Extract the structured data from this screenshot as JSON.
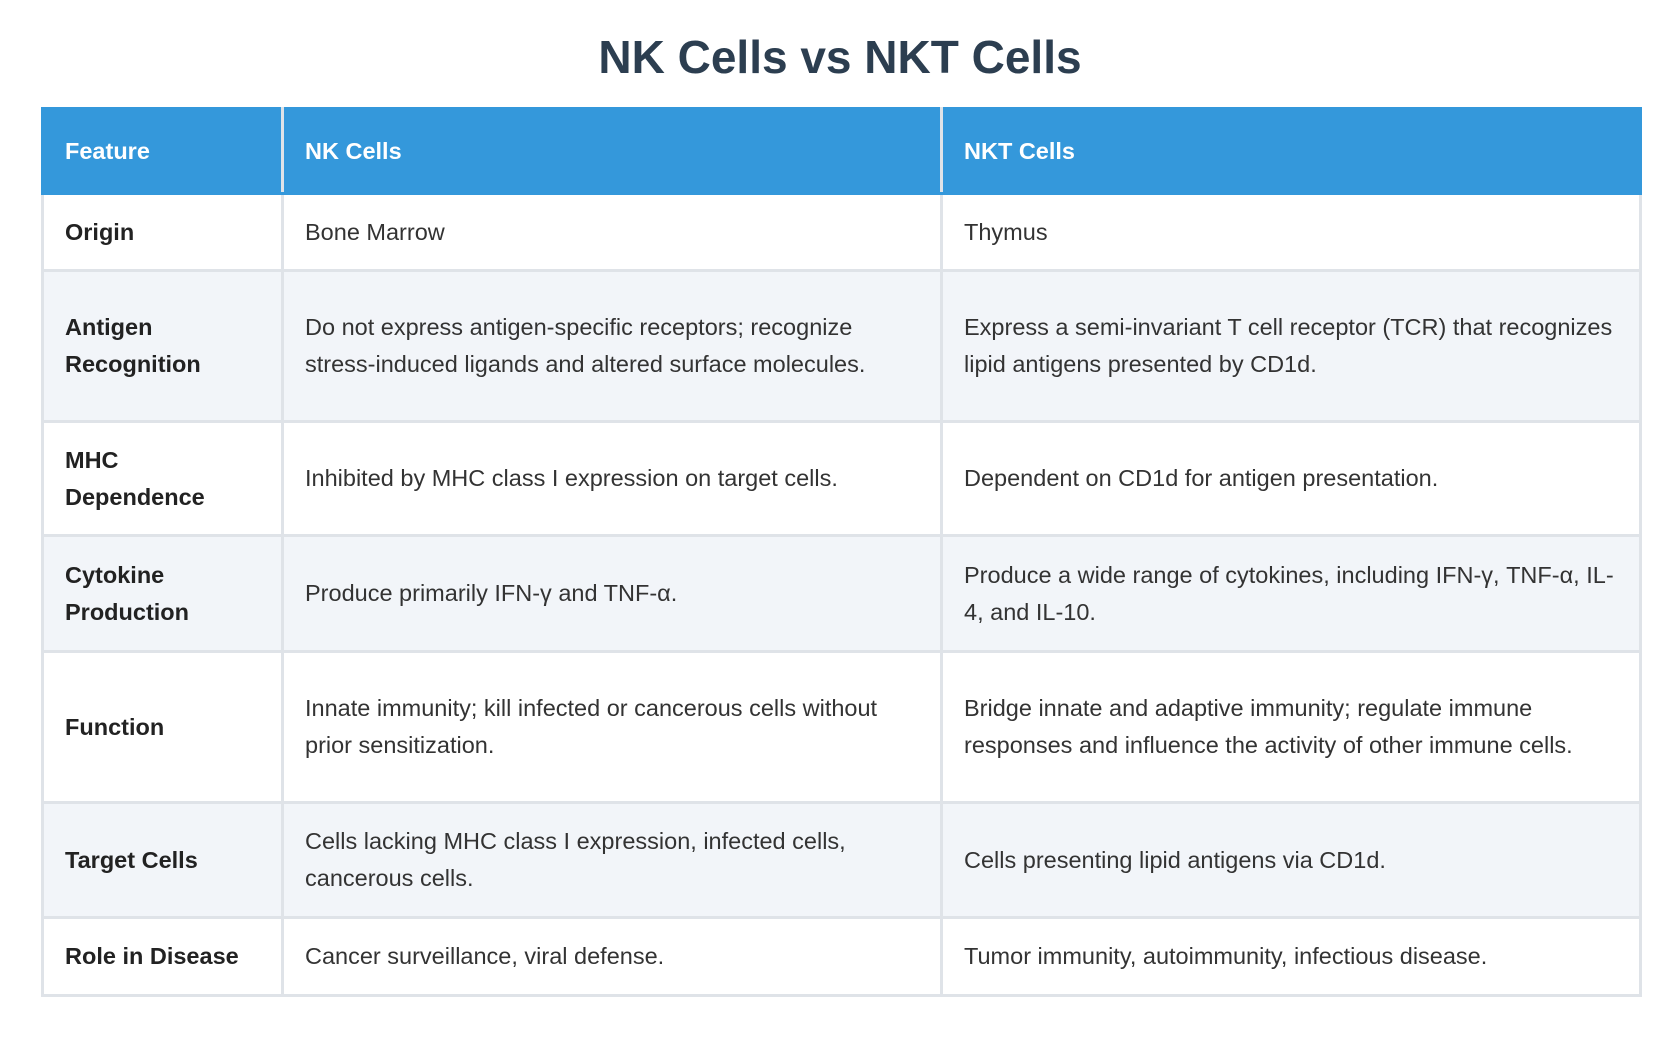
{
  "header": {
    "title": "NK Cells vs NKT Cells"
  },
  "table": {
    "columns": [
      "Feature",
      "NK Cells",
      "NKT Cells"
    ],
    "rows": [
      [
        "Origin",
        "Bone Marrow",
        "Thymus"
      ],
      [
        "Antigen Recognition",
        "Do not express antigen-specific receptors; recognize stress-induced ligands and altered surface molecules.",
        "Express a semi-invariant T cell receptor (TCR) that recognizes lipid antigens presented by CD1d."
      ],
      [
        "MHC Dependence",
        "Inhibited by MHC class I expression on target cells.",
        "Dependent on CD1d for antigen presentation."
      ],
      [
        "Cytokine Production",
        "Produce primarily IFN-γ and TNF-α.",
        "Produce a wide range of cytokines, including IFN-γ, TNF-α, IL-4, and IL-10."
      ],
      [
        "Function",
        "Innate immunity; kill infected or cancerous cells without prior sensitization.",
        "Bridge innate and adaptive immunity; regulate immune responses and influence the activity of other immune cells."
      ],
      [
        "Target Cells",
        "Cells lacking MHC class I expression, infected cells, cancerous cells.",
        "Cells presenting lipid antigens via CD1d."
      ],
      [
        "Role in Disease",
        "Cancer surveillance, viral defense.",
        "Tumor immunity, autoimmunity, infectious disease."
      ]
    ]
  }
}
